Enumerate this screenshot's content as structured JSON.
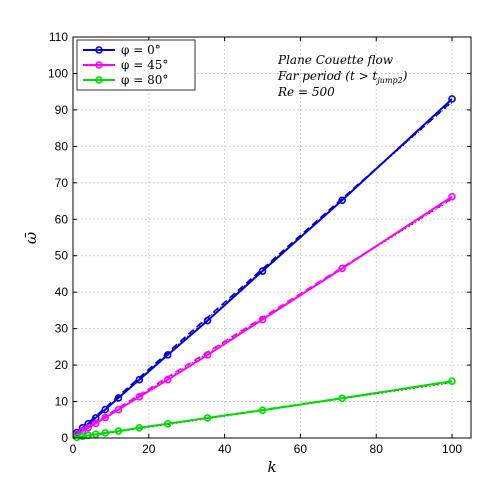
{
  "chart_data": {
    "type": "line",
    "title": "",
    "xlabel": "k",
    "ylabel": "ω̄",
    "xlim": [
      0,
      105
    ],
    "ylim": [
      0,
      110
    ],
    "xticks": [
      0,
      20,
      40,
      60,
      80,
      100
    ],
    "yticks": [
      0,
      10,
      20,
      30,
      40,
      50,
      60,
      70,
      80,
      90,
      100,
      110
    ],
    "grid": true,
    "legend_position": "top-left",
    "annotations": [
      "Plane Couette flow",
      "Far period (t > t",
      "jump2",
      ")",
      "Re = 500"
    ],
    "series": [
      {
        "name": "φ = 0°",
        "color": "#0000dd",
        "marker": "circle",
        "x": [
          1,
          2.5,
          4,
          6,
          8.5,
          12,
          17.5,
          25,
          35.5,
          50,
          71,
          100
        ],
        "y": [
          1.5,
          2.8,
          3.9,
          5.5,
          7.8,
          11,
          16,
          22.8,
          32.2,
          45.8,
          65.2,
          93
        ],
        "fit": {
          "x": [
            0,
            100
          ],
          "y": [
            0.5,
            92.3
          ]
        }
      },
      {
        "name": "φ = 45°",
        "color": "#ff00ff",
        "marker": "circle",
        "x": [
          1,
          2.5,
          4,
          6,
          8.5,
          12,
          17.5,
          25,
          35.5,
          50,
          71,
          100
        ],
        "y": [
          0.9,
          1.9,
          2.8,
          4,
          5.6,
          7.8,
          11.3,
          16,
          22.8,
          32.5,
          46.5,
          66.2
        ],
        "fit": {
          "x": [
            0,
            100
          ],
          "y": [
            0.4,
            65.7
          ]
        }
      },
      {
        "name": "φ = 80°",
        "color": "#00dd00",
        "marker": "circle",
        "x": [
          1,
          2.5,
          4,
          6,
          8.5,
          12,
          17.5,
          25,
          35.5,
          50,
          71,
          100
        ],
        "y": [
          0.2,
          0.45,
          0.7,
          1.0,
          1.4,
          1.9,
          2.8,
          3.9,
          5.5,
          7.6,
          10.9,
          15.6
        ],
        "fit": {
          "x": [
            0,
            100
          ],
          "y": [
            0.1,
            15.4
          ]
        }
      }
    ]
  }
}
